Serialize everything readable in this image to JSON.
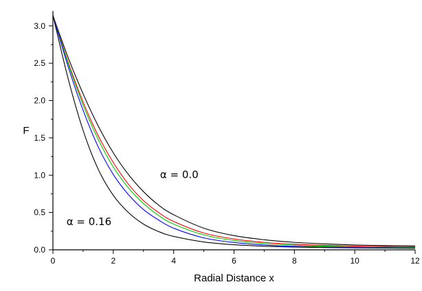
{
  "chart_data": {
    "type": "line",
    "title": "",
    "xlabel": "Radial Distance x",
    "ylabel": "F",
    "xlim": [
      0,
      12
    ],
    "ylim": [
      0,
      3.2
    ],
    "x_ticks": [
      0,
      2,
      4,
      6,
      8,
      10,
      12
    ],
    "x_tick_labels": [
      "0",
      "2",
      "4",
      "6",
      "8",
      "10",
      "12"
    ],
    "y_ticks": [
      0.0,
      0.5,
      1.0,
      1.5,
      2.0,
      2.5,
      3.0
    ],
    "y_tick_labels": [
      "0.0",
      "0.5",
      "1.0",
      "1.5",
      "2.0",
      "2.5",
      "3.0"
    ],
    "grid": false,
    "annotations": [
      {
        "text": "α = 0.0",
        "x": 3.55,
        "y": 0.96
      },
      {
        "text": "α = 0.16",
        "x": 0.45,
        "y": 0.33
      }
    ],
    "x": [
      0,
      0.5,
      1,
      1.5,
      2,
      2.5,
      3,
      3.5,
      4,
      5,
      6,
      7,
      8,
      9,
      10,
      11,
      12
    ],
    "series": [
      {
        "color": "#000000",
        "values": [
          3.1416,
          2.58,
          2.09,
          1.66,
          1.3,
          1.01,
          0.78,
          0.6,
          0.47,
          0.29,
          0.19,
          0.135,
          0.1,
          0.08,
          0.065,
          0.057,
          0.052
        ]
      },
      {
        "color": "#ff0000",
        "values": [
          3.1416,
          2.52,
          1.98,
          1.53,
          1.17,
          0.88,
          0.66,
          0.5,
          0.38,
          0.225,
          0.145,
          0.1,
          0.075,
          0.06,
          0.05,
          0.045,
          0.042
        ]
      },
      {
        "color": "#00cc00",
        "values": [
          3.1416,
          2.5,
          1.94,
          1.48,
          1.11,
          0.83,
          0.62,
          0.46,
          0.345,
          0.2,
          0.125,
          0.085,
          0.063,
          0.05,
          0.042,
          0.037,
          0.034
        ]
      },
      {
        "color": "#0000ff",
        "values": [
          3.1416,
          2.46,
          1.87,
          1.38,
          1.01,
          0.74,
          0.54,
          0.4,
          0.29,
          0.16,
          0.098,
          0.065,
          0.047,
          0.037,
          0.031,
          0.027,
          0.025
        ]
      },
      {
        "color": "#000000",
        "values": [
          3.1416,
          2.3,
          1.6,
          1.08,
          0.73,
          0.5,
          0.345,
          0.245,
          0.18,
          0.105,
          0.068,
          0.048,
          0.037,
          0.03,
          0.026,
          0.023,
          0.021
        ]
      }
    ]
  }
}
